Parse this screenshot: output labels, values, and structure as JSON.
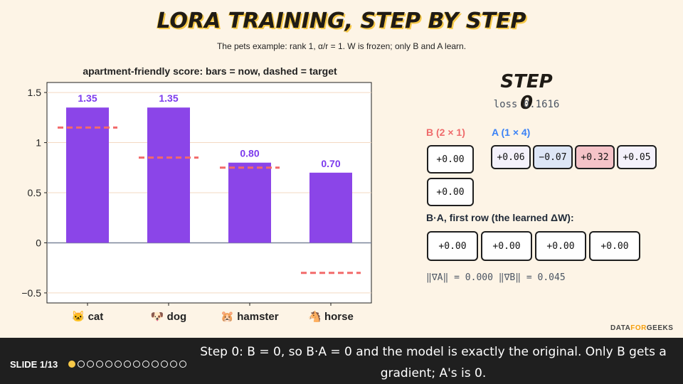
{
  "header": {
    "title": "LORA TRAINING, STEP BY STEP",
    "subtitle": "The pets example: rank 1, α/r = 1. W is frozen; only B and A learn."
  },
  "chart_data": {
    "type": "bar",
    "title": "apartment-friendly score: bars = now, dashed = target",
    "categories": [
      "🐱 cat",
      "🐶 dog",
      "🐹 hamster",
      "🐴 horse"
    ],
    "series": [
      {
        "name": "now",
        "values": [
          1.35,
          1.35,
          0.8,
          0.7
        ]
      },
      {
        "name": "target",
        "values": [
          1.15,
          0.85,
          0.75,
          -0.3
        ]
      }
    ],
    "value_labels": [
      "1.35",
      "1.35",
      "0.80",
      "0.70"
    ],
    "yticks": [
      1.5,
      1,
      0.5,
      0,
      -0.5
    ],
    "ytick_labels": [
      "1.5",
      "1",
      "0.5",
      "0",
      "−0.5"
    ],
    "ylim": [
      -0.6,
      1.6
    ],
    "colors": {
      "bar": "#8b45e8",
      "target": "#f26a6a",
      "label": "#7c3aed",
      "grid": "#f3d9c2"
    }
  },
  "step": {
    "title": "STEP 0",
    "loss": "loss 0.1616",
    "b_label": "B (2 × 1)",
    "a_label": "A (1 × 4)",
    "b_values": [
      "+0.00",
      "+0.00"
    ],
    "a_values": [
      "+0.06",
      "−0.07",
      "+0.32",
      "+0.05"
    ],
    "ba_label": "B·A, first row (the learned ΔW):",
    "ba_values": [
      "+0.00",
      "+0.00",
      "+0.00",
      "+0.00"
    ],
    "grads": "‖∇A‖ = 0.000  ‖∇B‖ = 0.045"
  },
  "brand": {
    "part1": "DATA",
    "part2": "FOR",
    "part3": "GEEKS"
  },
  "footer": {
    "slide": "SLIDE 1/13",
    "total_dots": 13,
    "active_dot": 0,
    "caption": "Step 0: B = 0, so B·A = 0 and the model is exactly the original. Only B gets a gradient; A's is 0."
  }
}
